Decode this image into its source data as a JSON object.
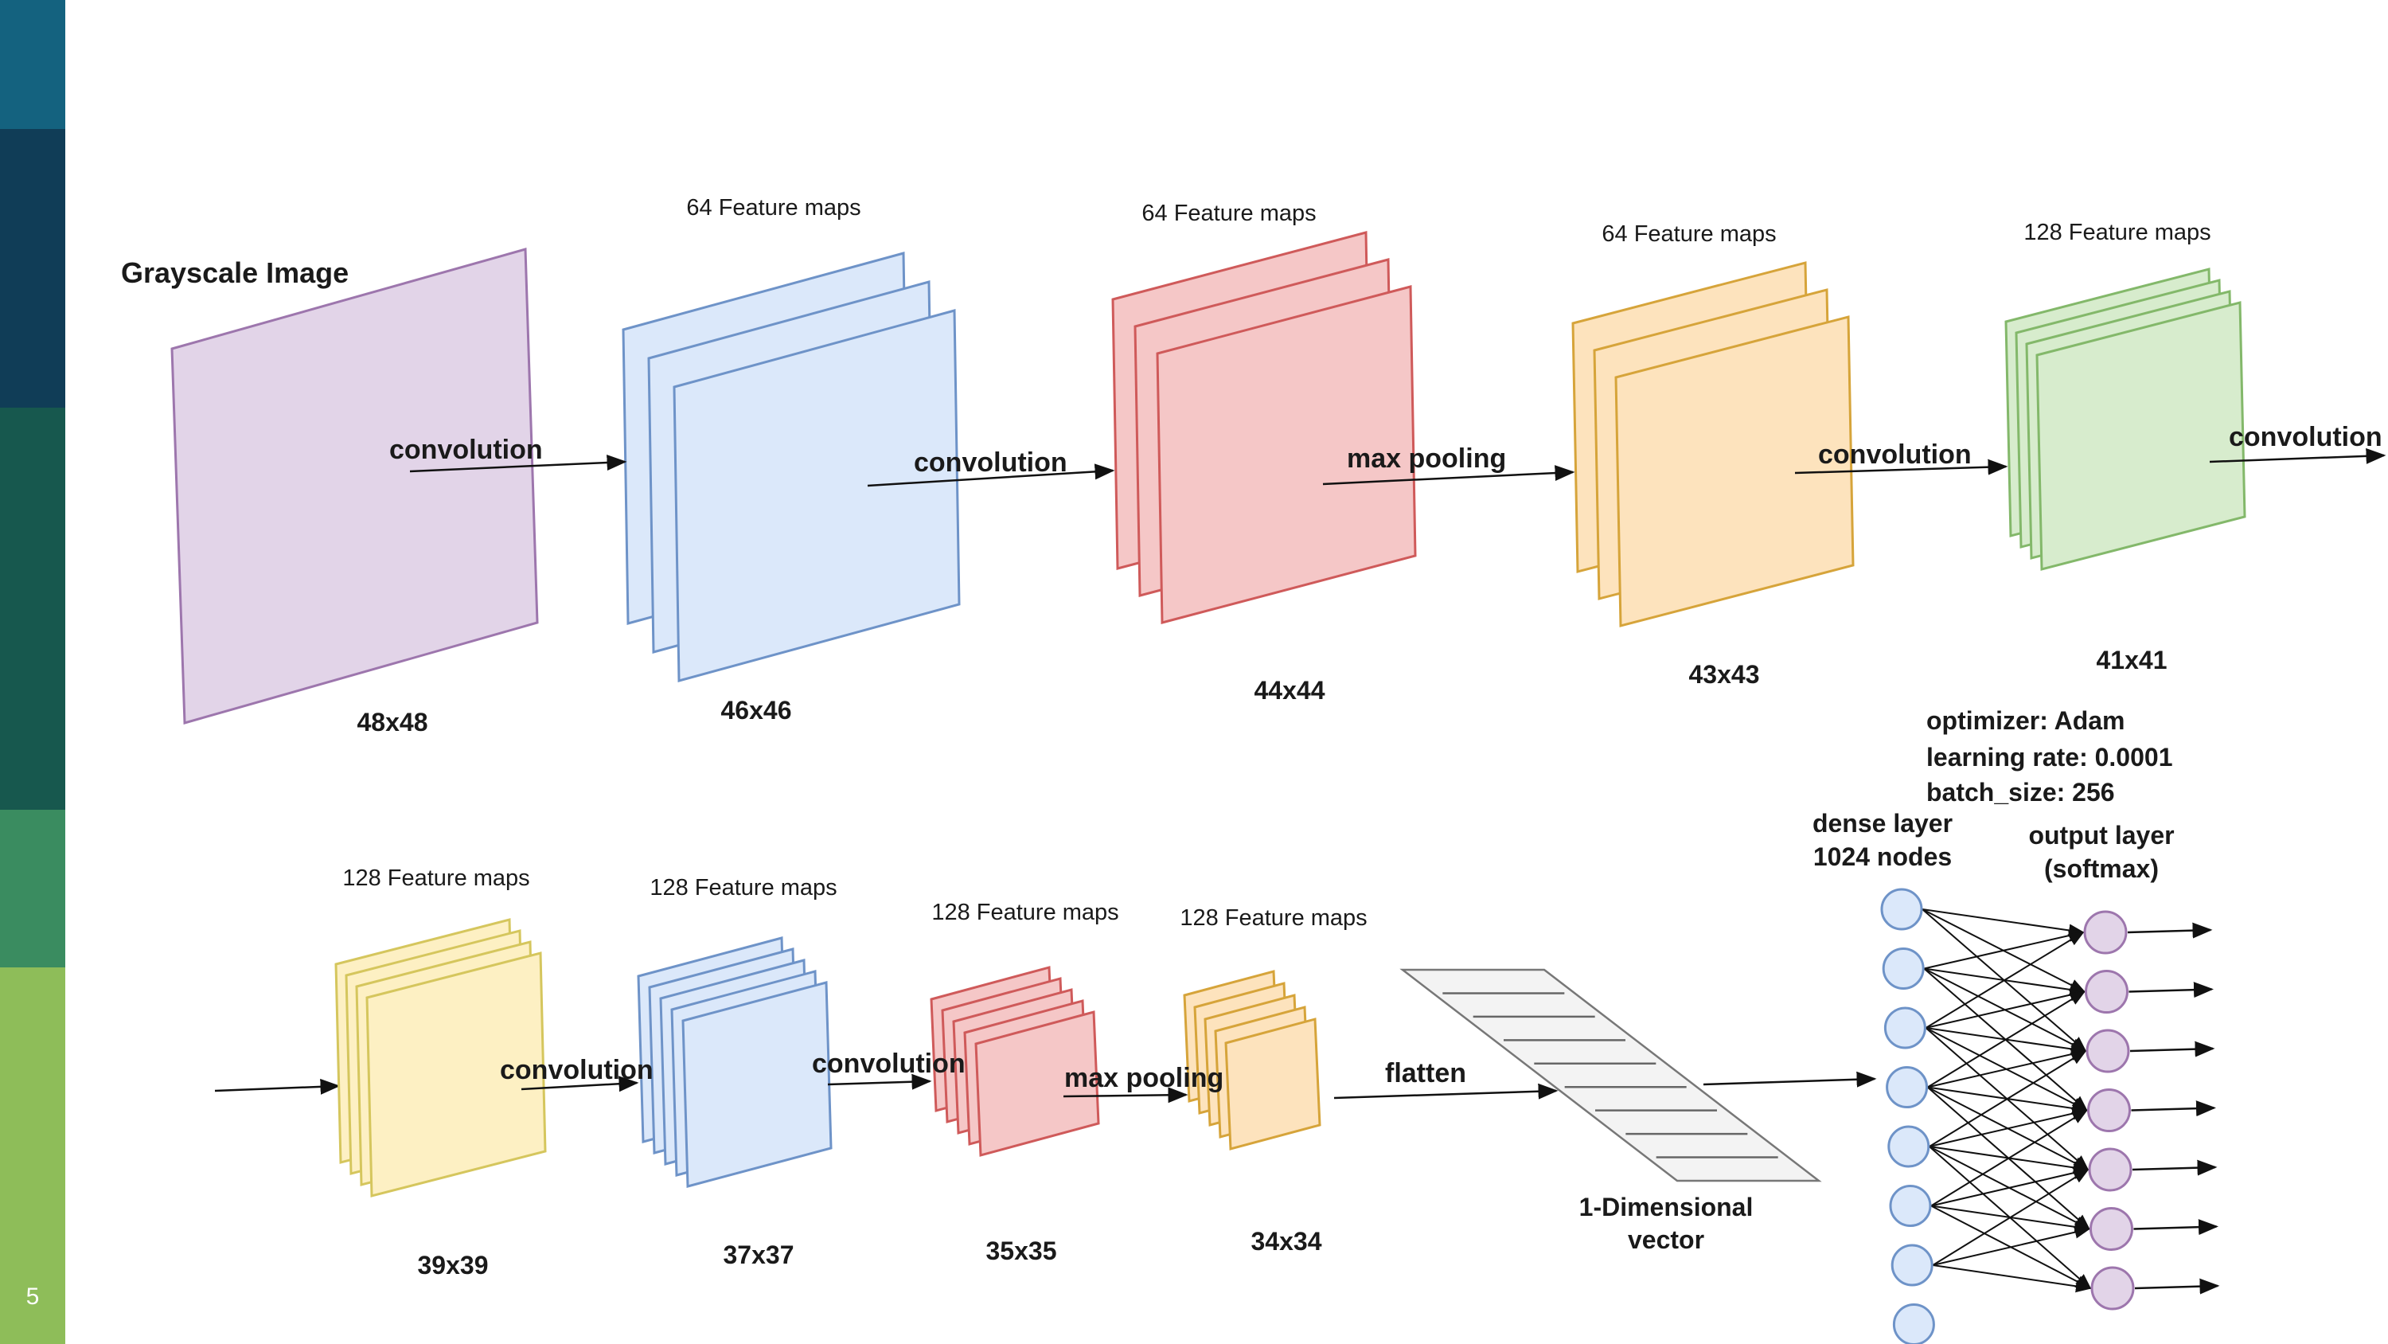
{
  "slide": {
    "number": "5"
  },
  "colors": {
    "side_strip": [
      "#14627f",
      "#103d57",
      "#17584e",
      "#3a8c60",
      "#8ebd59"
    ],
    "purple": {
      "fill": "#e2d4e8",
      "stroke": "#9d76ad"
    },
    "blue": {
      "fill": "#dbe8fa",
      "stroke": "#6e93c8"
    },
    "red": {
      "fill": "#f5c7c7",
      "stroke": "#cf5a5a"
    },
    "orange": {
      "fill": "#fde3bd",
      "stroke": "#d6a43a"
    },
    "green": {
      "fill": "#d7eccd",
      "stroke": "#83b86a"
    },
    "yellow": {
      "fill": "#fdf0c3",
      "stroke": "#d5c65d"
    },
    "dense_node": {
      "fill": "#dbe8fa",
      "stroke": "#6e93c8"
    },
    "output_node": {
      "fill": "#e2d4e8",
      "stroke": "#9d76ad"
    }
  },
  "row1": {
    "input": {
      "title": "Grayscale Image",
      "dims": "48x48",
      "color": "purple"
    },
    "stages": [
      {
        "header": "64 Feature maps",
        "dims": "46x46",
        "color": "blue"
      },
      {
        "header": "64 Feature maps",
        "dims": "44x44",
        "color": "red"
      },
      {
        "header": "64 Feature maps",
        "dims": "43x43",
        "color": "orange"
      },
      {
        "header": "128 Feature maps",
        "dims": "41x41",
        "color": "green"
      }
    ],
    "operations": [
      "convolution",
      "convolution",
      "max pooling",
      "convolution",
      "convolution"
    ]
  },
  "row2": {
    "stages": [
      {
        "header": "128 Feature maps",
        "dims": "39x39",
        "color": "yellow"
      },
      {
        "header": "128 Feature maps",
        "dims": "37x37",
        "color": "blue"
      },
      {
        "header": "128 Feature maps",
        "dims": "35x35",
        "color": "red"
      },
      {
        "header": "128 Feature maps",
        "dims": "34x34",
        "color": "orange"
      }
    ],
    "operations": [
      "convolution",
      "convolution",
      "max pooling",
      "flatten"
    ],
    "vector": {
      "line1": "1-Dimensional",
      "line2": "vector"
    }
  },
  "dense": {
    "title_line1": "dense layer",
    "title_line2": "1024 nodes",
    "output_line1": "output layer",
    "output_line2": "(softmax)",
    "optimizer": "optimizer: Adam",
    "learning_rate": "learning rate: 0.0001",
    "batch_size": "batch_size: 256",
    "dense_nodes": 8,
    "output_nodes": 7
  }
}
